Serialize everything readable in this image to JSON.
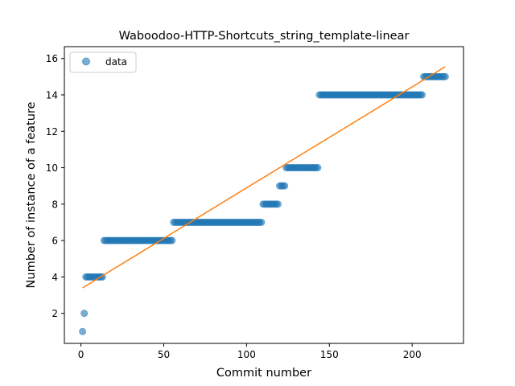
{
  "chart_data": {
    "type": "scatter",
    "title": "Waboodoo-HTTP-Shortcuts_string_template-linear",
    "xlabel": "Commit number",
    "ylabel": "Number of instance of a feature",
    "xlim": [
      -10,
      231
    ],
    "ylim": [
      0.35,
      16.65
    ],
    "xticks": [
      0,
      50,
      100,
      150,
      200
    ],
    "yticks": [
      2,
      4,
      6,
      8,
      10,
      12,
      14,
      16
    ],
    "grid": false,
    "legend": {
      "position": "top-left",
      "entries": [
        "data"
      ]
    },
    "colors": {
      "data": "#1f77b4",
      "fit": "#ff7f0e"
    },
    "series": [
      {
        "name": "data",
        "kind": "scatter",
        "segments": [
          {
            "x_from": 1,
            "x_to": 1,
            "y": 1
          },
          {
            "x_from": 2,
            "x_to": 2,
            "y": 2
          },
          {
            "x_from": 3,
            "x_to": 13,
            "y": 4
          },
          {
            "x_from": 14,
            "x_to": 55,
            "y": 6
          },
          {
            "x_from": 56,
            "x_to": 109,
            "y": 7
          },
          {
            "x_from": 110,
            "x_to": 119,
            "y": 8
          },
          {
            "x_from": 120,
            "x_to": 123,
            "y": 9
          },
          {
            "x_from": 124,
            "x_to": 143,
            "y": 10
          },
          {
            "x_from": 144,
            "x_to": 206,
            "y": 14
          },
          {
            "x_from": 207,
            "x_to": 220,
            "y": 15
          }
        ]
      },
      {
        "kind": "line",
        "x": [
          1,
          220
        ],
        "y": [
          3.4,
          15.55
        ]
      }
    ]
  }
}
